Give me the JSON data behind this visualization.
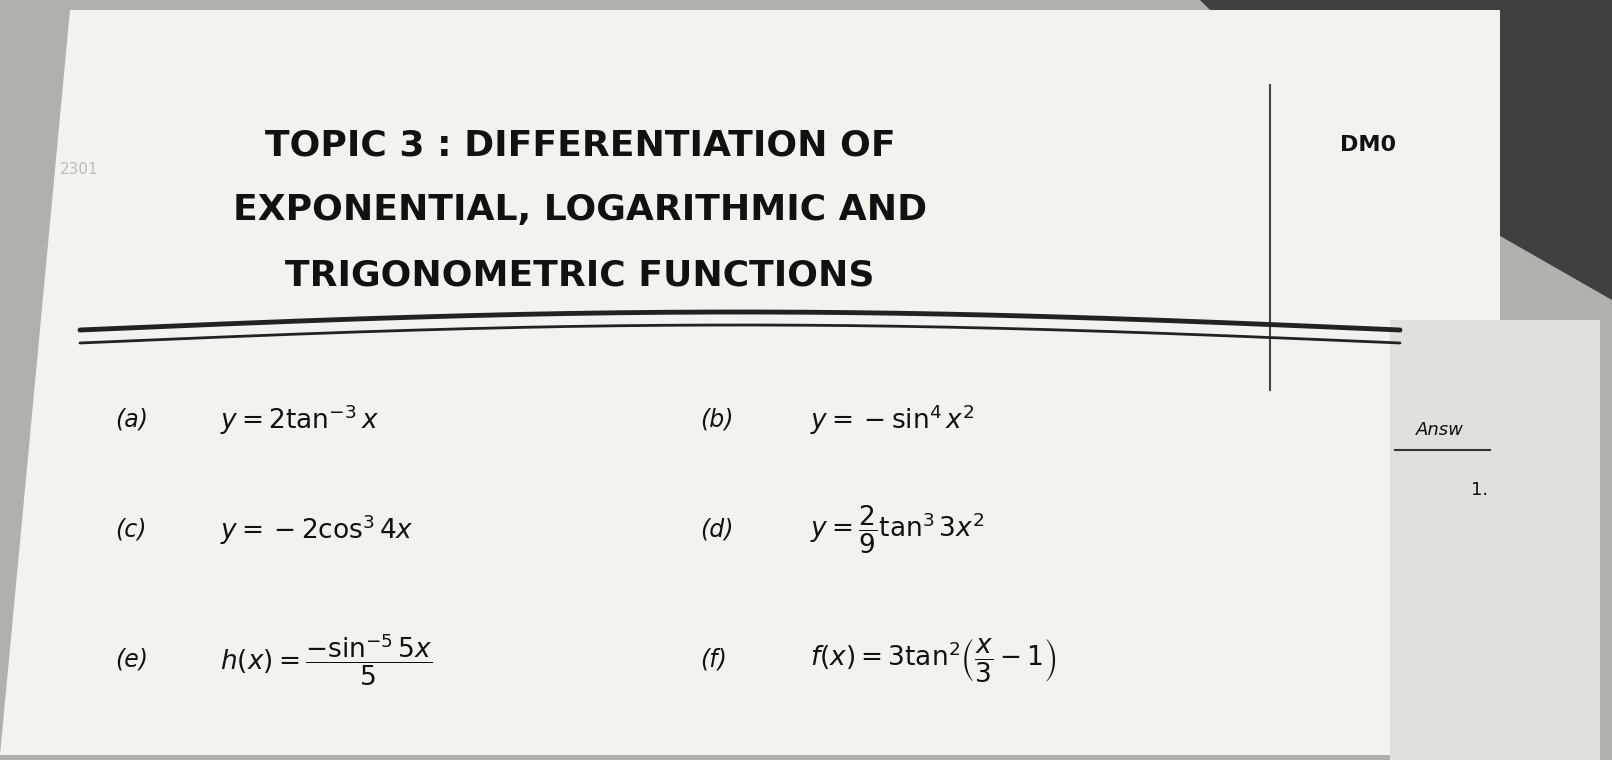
{
  "bg_top_color": "#a8a8a8",
  "bg_bottom_color": "#c0c0bc",
  "paper_color": "#f0f0ec",
  "paper_right_color": "#d8d8d4",
  "title_line1": "TOPIC 3 : DIFFERENTIATION OF",
  "title_line2": "EXPONENTIAL, LOGARITHMIC AND",
  "title_line3": "TRIGONOMETRIC FUNCTIONS",
  "dm_label": "DM0",
  "items": [
    {
      "label": "(a)",
      "formula": "$y = 2\\tan^{-3}x$",
      "col": 0,
      "row": 0
    },
    {
      "label": "(b)",
      "formula": "$y = -\\sin^{4}x^{2}$",
      "col": 1,
      "row": 0
    },
    {
      "label": "(c)",
      "formula": "$y = -2\\cos^{3}4x$",
      "col": 0,
      "row": 1
    },
    {
      "label": "(d)",
      "formula": "$y = \\dfrac{2}{9}\\tan^{3}3x^{2}$",
      "col": 1,
      "row": 1
    },
    {
      "label": "(e)",
      "formula": "$h(x) = \\dfrac{-\\sin^{-5}5x}{5}$",
      "col": 0,
      "row": 2
    },
    {
      "label": "(f)",
      "formula": "$f(x) = 3\\tan^{2}\\!\\left(\\dfrac{x}{3}-1\\right)$",
      "col": 1,
      "row": 2
    }
  ],
  "answer_label": "Answ",
  "number_label": "1.",
  "title_fontsize": 26,
  "item_fontsize": 19,
  "label_fontsize": 17
}
